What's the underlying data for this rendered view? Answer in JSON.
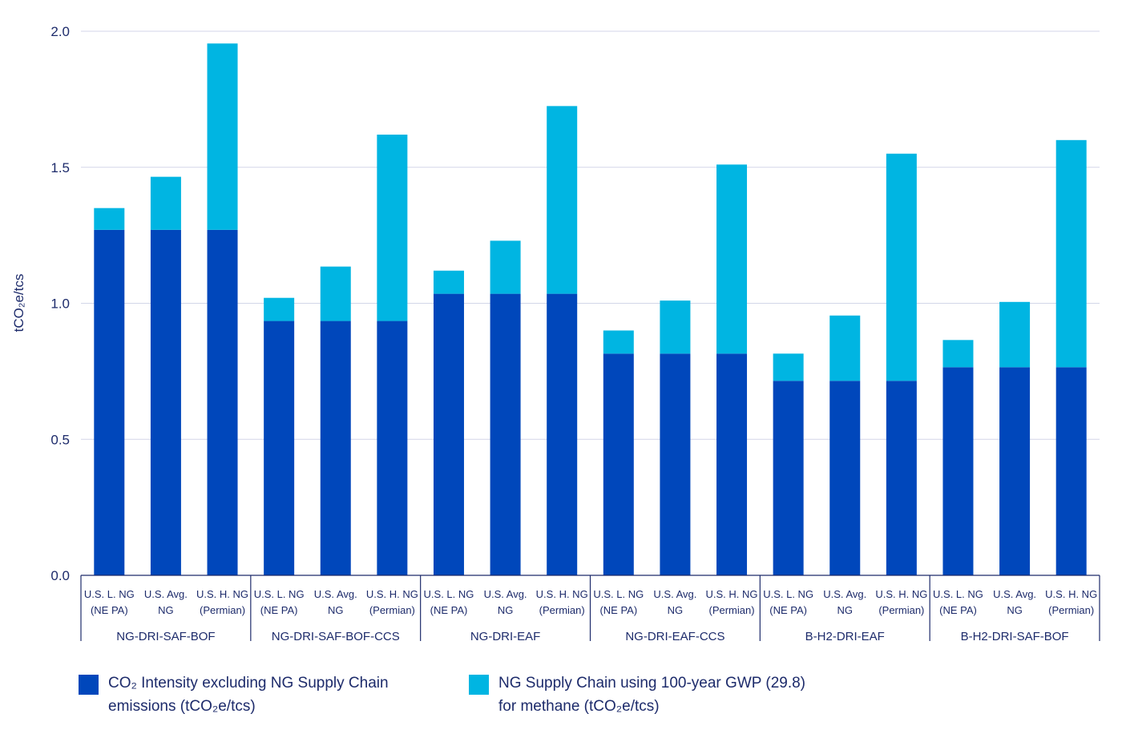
{
  "chart_data": {
    "type": "bar",
    "stacked": true,
    "ylabel": "tCO₂e/tcs",
    "ylim": [
      0,
      2.0
    ],
    "yticks": [
      "0.0",
      "0.5",
      "1.0",
      "1.5",
      "2.0"
    ],
    "grid": true,
    "legend_position": "bottom",
    "groups": [
      {
        "name": "NG-DRI-SAF-BOF",
        "bars": [
          {
            "label": [
              "U.S. L. NG",
              "(NE PA)"
            ],
            "base": 1.27,
            "supply": 0.08
          },
          {
            "label": [
              "U.S. Avg.",
              "NG"
            ],
            "base": 1.27,
            "supply": 0.195
          },
          {
            "label": [
              "U.S. H. NG",
              "(Permian)"
            ],
            "base": 1.27,
            "supply": 0.685
          }
        ]
      },
      {
        "name": "NG-DRI-SAF-BOF-CCS",
        "bars": [
          {
            "label": [
              "U.S. L. NG",
              "(NE PA)"
            ],
            "base": 0.935,
            "supply": 0.085
          },
          {
            "label": [
              "U.S. Avg.",
              "NG"
            ],
            "base": 0.935,
            "supply": 0.2
          },
          {
            "label": [
              "U.S. H. NG",
              "(Permian)"
            ],
            "base": 0.935,
            "supply": 0.685
          }
        ]
      },
      {
        "name": "NG-DRI-EAF",
        "bars": [
          {
            "label": [
              "U.S. L. NG",
              "(NE PA)"
            ],
            "base": 1.035,
            "supply": 0.085
          },
          {
            "label": [
              "U.S. Avg.",
              "NG"
            ],
            "base": 1.035,
            "supply": 0.195
          },
          {
            "label": [
              "U.S. H. NG",
              "(Permian)"
            ],
            "base": 1.035,
            "supply": 0.69
          }
        ]
      },
      {
        "name": "NG-DRI-EAF-CCS",
        "bars": [
          {
            "label": [
              "U.S. L. NG",
              "(NE PA)"
            ],
            "base": 0.815,
            "supply": 0.085
          },
          {
            "label": [
              "U.S. Avg.",
              "NG"
            ],
            "base": 0.815,
            "supply": 0.195
          },
          {
            "label": [
              "U.S. H. NG",
              "(Permian)"
            ],
            "base": 0.815,
            "supply": 0.695
          }
        ]
      },
      {
        "name": "B-H2-DRI-EAF",
        "bars": [
          {
            "label": [
              "U.S. L. NG",
              "(NE PA)"
            ],
            "base": 0.715,
            "supply": 0.1
          },
          {
            "label": [
              "U.S. Avg.",
              "NG"
            ],
            "base": 0.715,
            "supply": 0.24
          },
          {
            "label": [
              "U.S. H. NG",
              "(Permian)"
            ],
            "base": 0.715,
            "supply": 0.835
          }
        ]
      },
      {
        "name": "B-H2-DRI-SAF-BOF",
        "bars": [
          {
            "label": [
              "U.S. L. NG",
              "(NE PA)"
            ],
            "base": 0.765,
            "supply": 0.1
          },
          {
            "label": [
              "U.S. Avg.",
              "NG"
            ],
            "base": 0.765,
            "supply": 0.24
          },
          {
            "label": [
              "U.S. H. NG",
              "(Permian)"
            ],
            "base": 0.765,
            "supply": 0.835
          }
        ]
      }
    ],
    "series": [
      {
        "key": "base",
        "name": "CO₂ Intensity excluding NG Supply Chain emissions (tCO₂e/tcs)",
        "color": "#0047bb"
      },
      {
        "key": "supply",
        "name": "NG Supply Chain using 100-year GWP (29.8) for methane (tCO₂e/tcs)",
        "color": "#00b5e2"
      }
    ]
  }
}
